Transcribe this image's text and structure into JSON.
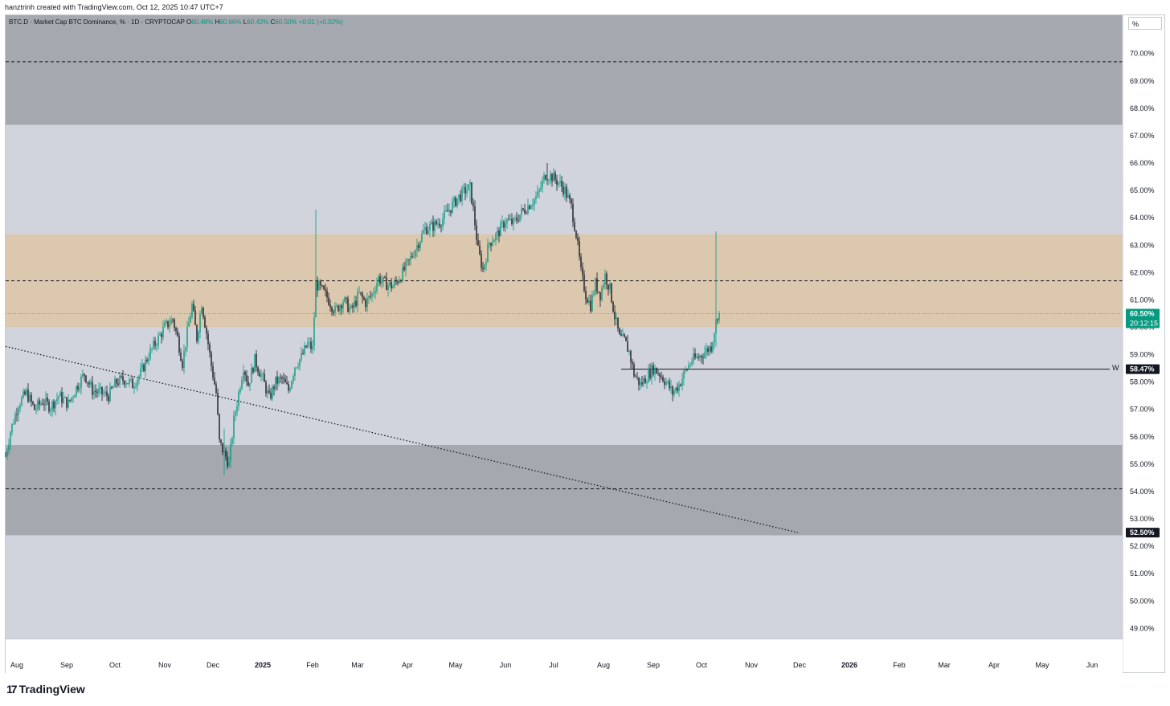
{
  "header": {
    "credit": "hanztrinh created with TradingView.com, Oct 12, 2025 10:47 UTC+7"
  },
  "legend": {
    "symbol_text": "BTC.D · Market Cap BTC Dominance, % · 1D · CRYPTOCAP",
    "o_label": "O",
    "o_value": "60.48%",
    "h_label": "H",
    "h_value": "60.66%",
    "l_label": "L",
    "l_value": "60.42%",
    "c_label": "C",
    "c_value": "60.50%",
    "change": "+0.01 (+0.02%)"
  },
  "unit_selector": "%",
  "footer": {
    "logo_text": "TradingView",
    "logo_mark": "17"
  },
  "colors": {
    "up": "#089981",
    "down": "#131722",
    "bg": "#d1d4dc",
    "zone_dark": "#a5a8ae",
    "zone_tan": "#dbc8ae",
    "price_badge": "#089981"
  },
  "chart_data": {
    "type": "candlestick",
    "timeframe": "1D",
    "ylim": [
      48.6,
      71.4
    ],
    "y_ticks": [
      "70.00%",
      "69.00%",
      "68.00%",
      "67.00%",
      "66.00%",
      "65.00%",
      "64.00%",
      "63.00%",
      "62.00%",
      "61.00%",
      "60.00%",
      "59.00%",
      "58.00%",
      "57.00%",
      "56.00%",
      "55.00%",
      "54.00%",
      "53.00%",
      "52.00%",
      "51.00%",
      "50.00%",
      "49.00%"
    ],
    "y_tick_values": [
      70,
      69,
      68,
      67,
      66,
      65,
      64,
      63,
      62,
      61,
      60,
      59,
      58,
      57,
      56,
      55,
      54,
      53,
      52,
      51,
      50,
      49
    ],
    "x_range": [
      "2024-07-25",
      "2026-06-20"
    ],
    "x_ticks": [
      {
        "label": "Aug",
        "date": "2024-08-01",
        "bold": false
      },
      {
        "label": "Sep",
        "date": "2024-09-01",
        "bold": false
      },
      {
        "label": "Oct",
        "date": "2024-10-01",
        "bold": false
      },
      {
        "label": "Nov",
        "date": "2024-11-01",
        "bold": false
      },
      {
        "label": "Dec",
        "date": "2024-12-01",
        "bold": false
      },
      {
        "label": "2025",
        "date": "2025-01-01",
        "bold": true
      },
      {
        "label": "Feb",
        "date": "2025-02-01",
        "bold": false
      },
      {
        "label": "Mar",
        "date": "2025-03-01",
        "bold": false
      },
      {
        "label": "Apr",
        "date": "2025-04-01",
        "bold": false
      },
      {
        "label": "May",
        "date": "2025-05-01",
        "bold": false
      },
      {
        "label": "Jun",
        "date": "2025-06-01",
        "bold": false
      },
      {
        "label": "Jul",
        "date": "2025-07-01",
        "bold": false
      },
      {
        "label": "Aug",
        "date": "2025-08-01",
        "bold": false
      },
      {
        "label": "Sep",
        "date": "2025-09-01",
        "bold": false
      },
      {
        "label": "Oct",
        "date": "2025-10-01",
        "bold": false
      },
      {
        "label": "Nov",
        "date": "2025-11-01",
        "bold": false
      },
      {
        "label": "Dec",
        "date": "2025-12-01",
        "bold": false
      },
      {
        "label": "2026",
        "date": "2026-01-01",
        "bold": true
      },
      {
        "label": "Feb",
        "date": "2026-02-01",
        "bold": false
      },
      {
        "label": "Mar",
        "date": "2026-03-01",
        "bold": false
      },
      {
        "label": "Apr",
        "date": "2026-04-01",
        "bold": false
      },
      {
        "label": "May",
        "date": "2026-05-01",
        "bold": false
      },
      {
        "label": "Jun",
        "date": "2026-06-01",
        "bold": false
      }
    ],
    "price_path": [
      [
        "2024-07-25",
        55.3
      ],
      [
        "2024-07-28",
        56.2
      ],
      [
        "2024-08-02",
        57.2
      ],
      [
        "2024-08-07",
        57.6
      ],
      [
        "2024-08-12",
        57.0
      ],
      [
        "2024-08-17",
        57.3
      ],
      [
        "2024-08-22",
        57.1
      ],
      [
        "2024-08-27",
        57.5
      ],
      [
        "2024-09-02",
        57.2
      ],
      [
        "2024-09-07",
        57.8
      ],
      [
        "2024-09-12",
        58.3
      ],
      [
        "2024-09-17",
        57.7
      ],
      [
        "2024-09-22",
        57.6
      ],
      [
        "2024-09-27",
        57.5
      ],
      [
        "2024-10-02",
        58.0
      ],
      [
        "2024-10-07",
        58.1
      ],
      [
        "2024-10-12",
        57.9
      ],
      [
        "2024-10-17",
        58.3
      ],
      [
        "2024-10-22",
        59.0
      ],
      [
        "2024-10-27",
        59.5
      ],
      [
        "2024-11-01",
        60.0
      ],
      [
        "2024-11-06",
        60.3
      ],
      [
        "2024-11-09",
        59.6
      ],
      [
        "2024-11-12",
        58.7
      ],
      [
        "2024-11-15",
        59.8
      ],
      [
        "2024-11-18",
        60.8
      ],
      [
        "2024-11-21",
        59.6
      ],
      [
        "2024-11-24",
        60.9
      ],
      [
        "2024-11-27",
        59.8
      ],
      [
        "2024-11-30",
        58.6
      ],
      [
        "2024-12-03",
        57.6
      ],
      [
        "2024-12-05",
        55.8
      ],
      [
        "2024-12-08",
        55.4
      ],
      [
        "2024-12-11",
        55.0
      ],
      [
        "2024-12-14",
        56.6
      ],
      [
        "2024-12-17",
        57.6
      ],
      [
        "2024-12-20",
        58.6
      ],
      [
        "2024-12-23",
        57.9
      ],
      [
        "2024-12-27",
        58.8
      ],
      [
        "2025-01-01",
        58.1
      ],
      [
        "2025-01-05",
        57.4
      ],
      [
        "2025-01-09",
        58.0
      ],
      [
        "2025-01-13",
        58.1
      ],
      [
        "2025-01-17",
        57.7
      ],
      [
        "2025-01-21",
        58.6
      ],
      [
        "2025-01-25",
        58.9
      ],
      [
        "2025-01-29",
        59.4
      ],
      [
        "2025-02-01",
        59.2
      ],
      [
        "2025-02-03",
        61.6
      ],
      [
        "2025-02-06",
        61.4
      ],
      [
        "2025-02-10",
        61.1
      ],
      [
        "2025-02-15",
        60.6
      ],
      [
        "2025-02-20",
        61.0
      ],
      [
        "2025-02-25",
        60.6
      ],
      [
        "2025-03-02",
        61.2
      ],
      [
        "2025-03-06",
        60.9
      ],
      [
        "2025-03-10",
        61.2
      ],
      [
        "2025-03-14",
        61.8
      ],
      [
        "2025-03-18",
        61.6
      ],
      [
        "2025-03-23",
        61.5
      ],
      [
        "2025-03-28",
        61.9
      ],
      [
        "2025-04-02",
        62.4
      ],
      [
        "2025-04-07",
        63.0
      ],
      [
        "2025-04-12",
        63.6
      ],
      [
        "2025-04-17",
        63.7
      ],
      [
        "2025-04-22",
        63.9
      ],
      [
        "2025-04-27",
        64.3
      ],
      [
        "2025-05-02",
        64.7
      ],
      [
        "2025-05-07",
        65.0
      ],
      [
        "2025-05-10",
        65.1
      ],
      [
        "2025-05-12",
        64.3
      ],
      [
        "2025-05-15",
        62.8
      ],
      [
        "2025-05-18",
        62.1
      ],
      [
        "2025-05-22",
        63.1
      ],
      [
        "2025-05-27",
        63.4
      ],
      [
        "2025-06-01",
        63.9
      ],
      [
        "2025-06-06",
        63.8
      ],
      [
        "2025-06-11",
        64.2
      ],
      [
        "2025-06-16",
        64.5
      ],
      [
        "2025-06-21",
        64.8
      ],
      [
        "2025-06-26",
        65.6
      ],
      [
        "2025-06-30",
        65.5
      ],
      [
        "2025-07-04",
        65.3
      ],
      [
        "2025-07-08",
        65.0
      ],
      [
        "2025-07-12",
        64.4
      ],
      [
        "2025-07-15",
        63.4
      ],
      [
        "2025-07-18",
        62.0
      ],
      [
        "2025-07-21",
        61.2
      ],
      [
        "2025-07-24",
        60.8
      ],
      [
        "2025-07-27",
        61.6
      ],
      [
        "2025-07-30",
        61.2
      ],
      [
        "2025-08-02",
        61.9
      ],
      [
        "2025-08-05",
        61.4
      ],
      [
        "2025-08-08",
        60.4
      ],
      [
        "2025-08-11",
        59.6
      ],
      [
        "2025-08-14",
        59.5
      ],
      [
        "2025-08-17",
        59.1
      ],
      [
        "2025-08-20",
        58.3
      ],
      [
        "2025-08-24",
        57.9
      ],
      [
        "2025-08-28",
        58.2
      ],
      [
        "2025-09-01",
        58.5
      ],
      [
        "2025-09-05",
        58.3
      ],
      [
        "2025-09-09",
        58.0
      ],
      [
        "2025-09-13",
        57.6
      ],
      [
        "2025-09-17",
        57.9
      ],
      [
        "2025-09-21",
        58.4
      ],
      [
        "2025-09-25",
        58.8
      ],
      [
        "2025-09-29",
        58.9
      ],
      [
        "2025-10-03",
        59.1
      ],
      [
        "2025-10-07",
        59.3
      ],
      [
        "2025-10-10",
        60.2
      ],
      [
        "2025-10-11",
        60.48
      ],
      [
        "2025-10-12",
        60.5
      ]
    ],
    "spikes": [
      {
        "date": "2025-02-03",
        "low": 60.8,
        "high": 64.3
      },
      {
        "date": "2024-12-08",
        "low": 54.6,
        "high": 56.3
      },
      {
        "date": "2025-10-10",
        "low": 59.3,
        "high": 63.5
      },
      {
        "date": "2025-05-10",
        "low": 64.6,
        "high": 65.4
      },
      {
        "date": "2025-06-27",
        "low": 65.2,
        "high": 66.0
      }
    ],
    "zones": [
      {
        "name": "upper-supply",
        "from": 67.4,
        "to": 71.4,
        "color": "#a5a8ae"
      },
      {
        "name": "mid-supply",
        "from": 60.0,
        "to": 63.4,
        "color": "#dbc8ae"
      },
      {
        "name": "lower-demand",
        "from": 52.4,
        "to": 55.7,
        "color": "#a5a8ae"
      }
    ],
    "dashed_levels": [
      69.7,
      61.7,
      54.1
    ],
    "trendline": {
      "start": [
        "2024-07-25",
        59.3
      ],
      "end": [
        "2025-11-30",
        52.5
      ]
    },
    "horizontal_level": {
      "value": 58.47,
      "from": "2025-08-12",
      "label": "W"
    },
    "last_price": {
      "value": 60.5,
      "label": "60.50%",
      "countdown": "20:12:15"
    },
    "level_badges": [
      {
        "value": 58.47,
        "label": "58.47%"
      },
      {
        "value": 52.5,
        "label": "52.50%"
      }
    ]
  }
}
